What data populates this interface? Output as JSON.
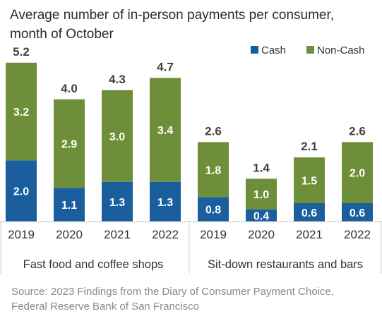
{
  "chart_data": {
    "type": "bar",
    "stacked": true,
    "title": "Average number of in-person payments per consumer, month of October",
    "legend": {
      "placement": "top-right",
      "entries": [
        "Cash",
        "Non-Cash"
      ]
    },
    "groups": [
      {
        "label": "Fast food and coffee shops",
        "categories": [
          "2019",
          "2020",
          "2021",
          "2022"
        ]
      },
      {
        "label": "Sit-down restaurants and bars",
        "categories": [
          "2019",
          "2020",
          "2021",
          "2022"
        ]
      }
    ],
    "categories": [
      "2019",
      "2020",
      "2021",
      "2022",
      "2019",
      "2020",
      "2021",
      "2022"
    ],
    "series": [
      {
        "name": "Cash",
        "color": "#1a5e9e",
        "values": [
          2.0,
          1.1,
          1.3,
          1.3,
          0.8,
          0.4,
          0.6,
          0.6
        ],
        "labels": [
          "2.0",
          "1.1",
          "1.3",
          "1.3",
          "0.8",
          "0.4",
          "0.6",
          "0.6"
        ]
      },
      {
        "name": "Non-Cash",
        "color": "#6e8f3a",
        "values": [
          3.2,
          2.9,
          3.0,
          3.4,
          1.8,
          1.0,
          1.5,
          2.0
        ],
        "labels": [
          "3.2",
          "2.9",
          "3.0",
          "3.4",
          "1.8",
          "1.0",
          "1.5",
          "2.0"
        ]
      }
    ],
    "totals": [
      5.2,
      4.0,
      4.3,
      4.7,
      2.6,
      1.4,
      2.1,
      2.6
    ],
    "total_labels": [
      "5.2",
      "4.0",
      "4.3",
      "4.7",
      "2.6",
      "1.4",
      "2.1",
      "2.6"
    ],
    "xlabel": "",
    "ylabel": "",
    "grid": false
  },
  "source_note": "Source: 2023 Findings from the Diary of Consumer Payment Choice,  Federal Reserve Bank of San Francisco"
}
